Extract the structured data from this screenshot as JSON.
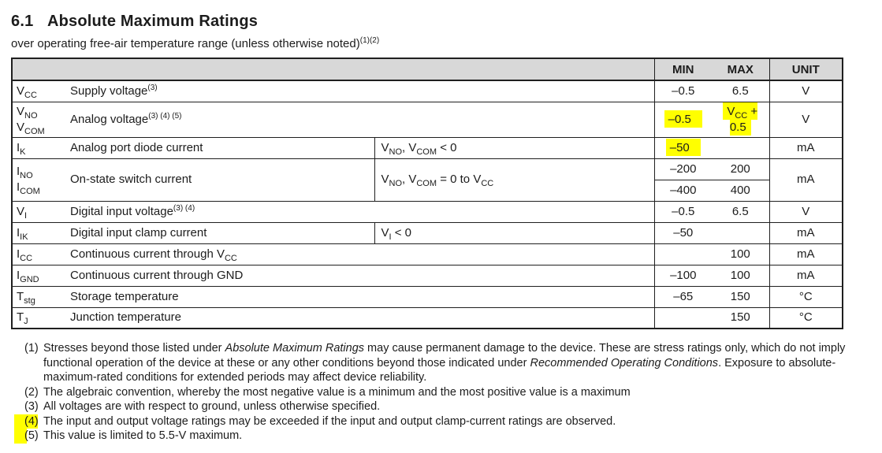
{
  "page": {
    "section_number": "6.1",
    "title": "Absolute Maximum Ratings",
    "subtitle": "over operating free-air temperature range (unless otherwise noted)",
    "subtitle_refs": "(1)(2)"
  },
  "table": {
    "headers": {
      "min": "MIN",
      "max": "MAX",
      "unit": "UNIT"
    },
    "header_bg": "#d8d8d8",
    "highlight_color": "#ffff00",
    "rows": [
      {
        "symbol": "V~CC~",
        "description": "Supply voltage^(3)^",
        "condition": "",
        "min": "–0.5",
        "max": "6.5",
        "unit": "V"
      },
      {
        "symbol": "V~NO~\nV~COM~",
        "description": "Analog voltage^(3) (4) (5)^",
        "condition": "",
        "min": "–0.5",
        "max": "V~CC~ + 0.5",
        "unit": "V",
        "min_highlight": true,
        "max_highlight": true
      },
      {
        "symbol": "I~K~",
        "description": "Analog port diode current",
        "condition": "V~NO~, V~COM~ < 0",
        "min": "–50",
        "max": "",
        "unit": "mA",
        "min_highlight": true
      },
      {
        "symbol": "I~NO~\nI~COM~",
        "description": "On-state switch current",
        "condition": "V~NO~, V~COM~ = 0 to V~CC~",
        "subrows": [
          {
            "min": "–200",
            "max": "200"
          },
          {
            "min": "–400",
            "max": "400"
          }
        ],
        "unit": "mA"
      },
      {
        "symbol": "V~I~",
        "description": "Digital input voltage^(3) (4)^",
        "condition": "",
        "min": "–0.5",
        "max": "6.5",
        "unit": "V"
      },
      {
        "symbol": "I~IK~",
        "description": "Digital input clamp current",
        "condition": "V~I~ < 0",
        "min": "–50",
        "max": "",
        "unit": "mA"
      },
      {
        "symbol": "I~CC~",
        "description": "Continuous current through V~CC~",
        "condition": "",
        "min": "",
        "max": "100",
        "unit": "mA"
      },
      {
        "symbol": "I~GND~",
        "description": "Continuous current through GND",
        "condition": "",
        "min": "–100",
        "max": "100",
        "unit": "mA"
      },
      {
        "symbol": "T~stg~",
        "description": "Storage temperature",
        "condition": "",
        "min": "–65",
        "max": "150",
        "unit": "°C"
      },
      {
        "symbol": "T~J~",
        "description": "Junction temperature",
        "condition": "",
        "min": "",
        "max": "150",
        "unit": "°C"
      }
    ]
  },
  "footnotes": [
    {
      "marker": "(1)",
      "highlight": "none",
      "text": "Stresses beyond those listed under *Absolute Maximum Ratings* may cause permanent damage to the device. These are stress ratings only, which do not imply functional operation of the device at these or any other conditions beyond those indicated under *Recommended Operating Conditions*. Exposure to absolute-maximum-rated conditions for extended periods may affect device reliability."
    },
    {
      "marker": "(2)",
      "highlight": "none",
      "text": "The algebraic convention, whereby the most negative value is a minimum and the most positive value is a maximum"
    },
    {
      "marker": "(3)",
      "highlight": "none",
      "text": "All voltages are with respect to ground, unless otherwise specified."
    },
    {
      "marker": "(4)",
      "highlight": "full",
      "text": "The input and output voltage ratings may be exceeded if the input and output clamp-current ratings are observed."
    },
    {
      "marker": "(5)",
      "highlight": "partial",
      "text": "This value is limited to 5.5-V maximum."
    }
  ]
}
